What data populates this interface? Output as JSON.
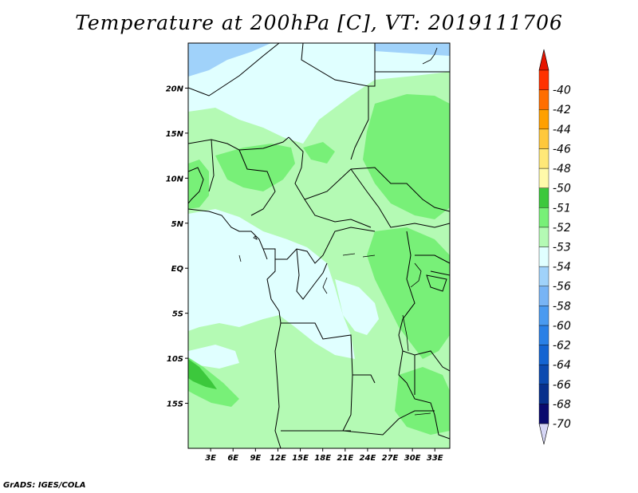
{
  "title": "Temperature at 200hPa [C], VT: 2019111706",
  "credit": "GrADS: IGES/COLA",
  "lat_ticks": [
    {
      "lat": 20,
      "label": "20N"
    },
    {
      "lat": 15,
      "label": "15N"
    },
    {
      "lat": 10,
      "label": "10N"
    },
    {
      "lat": 5,
      "label": "5N"
    },
    {
      "lat": 0,
      "label": "EQ"
    },
    {
      "lat": -5,
      "label": "5S"
    },
    {
      "lat": -10,
      "label": "10S"
    },
    {
      "lat": -15,
      "label": "15S"
    }
  ],
  "lon_ticks": [
    {
      "lon": 3,
      "label": "3E"
    },
    {
      "lon": 6,
      "label": "6E"
    },
    {
      "lon": 9,
      "label": "9E"
    },
    {
      "lon": 12,
      "label": "12E"
    },
    {
      "lon": 15,
      "label": "15E"
    },
    {
      "lon": 18,
      "label": "18E"
    },
    {
      "lon": 21,
      "label": "21E"
    },
    {
      "lon": 24,
      "label": "24E"
    },
    {
      "lon": 27,
      "label": "27E"
    },
    {
      "lon": 30,
      "label": "30E"
    },
    {
      "lon": 33,
      "label": "33E"
    }
  ],
  "map_extent": {
    "lon_min": 0,
    "lon_max": 35,
    "lat_min": -20,
    "lat_max": 25
  },
  "colorbar": {
    "colors": [
      "#d6d6f5",
      "#0a0a6e",
      "#08308c",
      "#0c4ab0",
      "#1464d2",
      "#2a80e6",
      "#4a9af0",
      "#78b4f5",
      "#a0d2fa",
      "#e0ffff",
      "#b4fab4",
      "#78f078",
      "#3cc83c",
      "#fffaaa",
      "#ffe878",
      "#ffc83c",
      "#ffa000",
      "#ff6e00",
      "#ff3200",
      "#e61400"
    ],
    "labels": [
      "-70",
      "-68",
      "-66",
      "-64",
      "-62",
      "-60",
      "-58",
      "-56",
      "-54",
      "-53",
      "-52",
      "-51",
      "-50",
      "-48",
      "-46",
      "-44",
      "-42",
      "-40"
    ]
  },
  "field_colors": {
    "light_blue": "#a0d2fa",
    "pale_cyan": "#e0ffff",
    "light_green": "#b4fab4",
    "mid_green": "#78f078"
  }
}
